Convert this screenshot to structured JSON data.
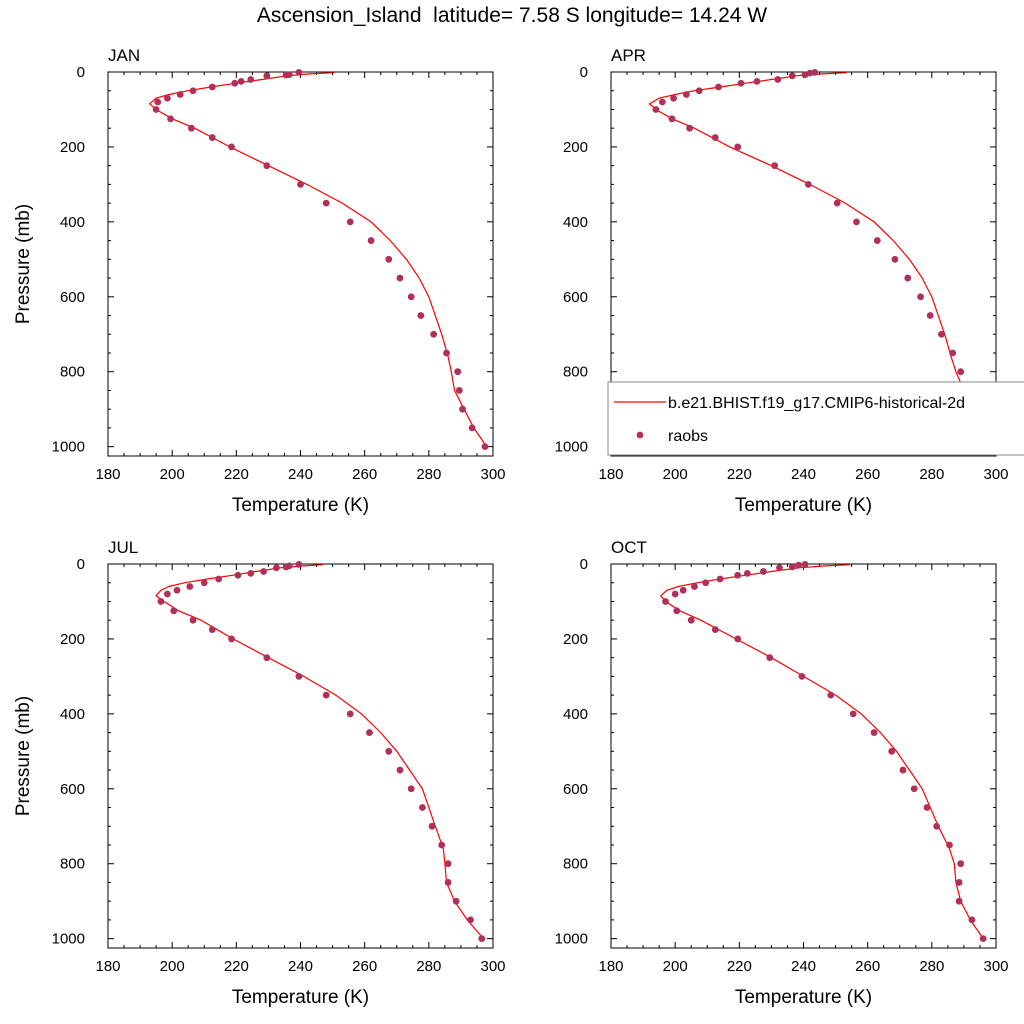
{
  "title": "Ascension_Island  latitude= 7.58 S longitude= 14.24 W",
  "colors": {
    "model_line": "#ff0000",
    "obs_marker": "#b0305a",
    "axis": "#000000"
  },
  "legend": {
    "model_label": "b.e21.BHIST.f19_g17.CMIP6-historical-2d",
    "obs_label": "raobs"
  },
  "chart_data": [
    {
      "type": "line",
      "panel_label": "JAN",
      "xlabel": "Temperature (K)",
      "ylabel": "Pressure (mb)",
      "xlim": [
        180,
        300
      ],
      "ylim": [
        0,
        1025
      ],
      "y_inverted": true,
      "xticks": [
        180,
        200,
        220,
        240,
        260,
        280,
        300
      ],
      "yticks": [
        0,
        200,
        400,
        600,
        800,
        1000
      ],
      "series": [
        {
          "name": "b.e21.BHIST.f19_g17.CMIP6-historical-2d",
          "kind": "line",
          "x": [
            250.5,
            243,
            236,
            228,
            220,
            212,
            205,
            199,
            195,
            193,
            195,
            200,
            207,
            218,
            230,
            242,
            253,
            262,
            268,
            273,
            277,
            280,
            284,
            286,
            287,
            288,
            291,
            294,
            298
          ],
          "y": [
            2,
            5,
            10,
            20,
            30,
            40,
            50,
            60,
            70,
            85,
            100,
            125,
            150,
            200,
            250,
            300,
            350,
            400,
            450,
            500,
            550,
            600,
            700,
            760,
            800,
            850,
            900,
            950,
            1000
          ]
        },
        {
          "name": "raobs",
          "kind": "scatter",
          "x": [
            239.5,
            236.5,
            235.5,
            229.5,
            224.5,
            221.5,
            219.5,
            212.5,
            206.5,
            202.5,
            198.5,
            195.5,
            195,
            199.5,
            206,
            212.5,
            218.5,
            229.5,
            240,
            248,
            255.5,
            262,
            267.5,
            271,
            274.5,
            277.5,
            281.5,
            285.5,
            289,
            289.5,
            290.5,
            293.5,
            297.5
          ],
          "y": [
            1,
            7,
            8,
            10,
            20,
            25,
            30,
            40,
            50,
            60,
            70,
            80,
            100,
            125,
            150,
            175,
            200,
            250,
            300,
            350,
            400,
            450,
            500,
            550,
            600,
            650,
            700,
            750,
            800,
            850,
            900,
            950,
            1000
          ]
        }
      ]
    },
    {
      "type": "line",
      "panel_label": "APR",
      "xlabel": "Temperature (K)",
      "ylabel": "",
      "xlim": [
        180,
        300
      ],
      "ylim": [
        0,
        1025
      ],
      "y_inverted": true,
      "xticks": [
        180,
        200,
        220,
        240,
        260,
        280,
        300
      ],
      "yticks": [
        0,
        200,
        400,
        600,
        800,
        1000
      ],
      "series": [
        {
          "name": "b.e21.BHIST.f19_g17.CMIP6-historical-2d",
          "kind": "line",
          "x": [
            253.5,
            246,
            238,
            230,
            222,
            214,
            206,
            200,
            195,
            192,
            194,
            199,
            206,
            217,
            230,
            242,
            253,
            262,
            268,
            273,
            277,
            280,
            284,
            286,
            287.5,
            290,
            293,
            296,
            300
          ],
          "y": [
            2,
            5,
            10,
            20,
            30,
            40,
            50,
            60,
            70,
            85,
            100,
            125,
            150,
            200,
            250,
            300,
            350,
            400,
            450,
            500,
            550,
            600,
            700,
            760,
            800,
            850,
            900,
            950,
            1000
          ]
        },
        {
          "name": "raobs",
          "kind": "scatter",
          "x": [
            243.5,
            242,
            240.5,
            236.5,
            232,
            225.5,
            220.5,
            213.5,
            207.5,
            203.5,
            199.5,
            196,
            194,
            199,
            204.5,
            212.5,
            219.5,
            231,
            241.5,
            250.5,
            256.5,
            263,
            268.5,
            272.5,
            276.5,
            279.5,
            283,
            286.5,
            289,
            290,
            292.5,
            297,
            300
          ],
          "y": [
            1,
            3,
            7,
            10,
            20,
            25,
            30,
            40,
            50,
            60,
            70,
            80,
            100,
            125,
            150,
            175,
            200,
            250,
            300,
            350,
            400,
            450,
            500,
            550,
            600,
            650,
            700,
            750,
            800,
            850,
            900,
            950,
            1000
          ]
        }
      ]
    },
    {
      "type": "line",
      "panel_label": "JUL",
      "xlabel": "Temperature (K)",
      "ylabel": "Pressure (mb)",
      "xlim": [
        180,
        300
      ],
      "ylim": [
        0,
        1025
      ],
      "y_inverted": true,
      "xticks": [
        180,
        200,
        220,
        240,
        260,
        280,
        300
      ],
      "yticks": [
        0,
        200,
        400,
        600,
        800,
        1000
      ],
      "series": [
        {
          "name": "b.e21.BHIST.f19_g17.CMIP6-historical-2d",
          "kind": "line",
          "x": [
            247,
            241,
            234,
            226,
            219,
            211,
            204,
            199,
            196.5,
            195,
            197.5,
            202,
            209,
            219,
            230,
            241,
            251,
            259,
            265,
            270,
            274,
            278,
            282,
            284.5,
            285,
            285.5,
            288,
            292,
            297
          ],
          "y": [
            2,
            5,
            10,
            20,
            30,
            40,
            50,
            60,
            70,
            85,
            100,
            125,
            150,
            200,
            250,
            300,
            350,
            400,
            450,
            500,
            550,
            600,
            700,
            760,
            800,
            850,
            900,
            950,
            1000
          ]
        },
        {
          "name": "raobs",
          "kind": "scatter",
          "x": [
            239.5,
            236.5,
            235.5,
            232.5,
            228.5,
            224.5,
            220.5,
            214.5,
            210,
            205.5,
            201.5,
            198.5,
            196.5,
            200.5,
            206.5,
            212.5,
            218.5,
            229.5,
            239.5,
            248,
            255.5,
            261.5,
            267.5,
            271,
            274.5,
            278,
            281,
            284,
            286,
            286,
            288.5,
            293,
            296.5
          ],
          "y": [
            1,
            5,
            8,
            10,
            20,
            25,
            30,
            40,
            50,
            60,
            70,
            80,
            100,
            125,
            150,
            175,
            200,
            250,
            300,
            350,
            400,
            450,
            500,
            550,
            600,
            650,
            700,
            750,
            800,
            850,
            900,
            950,
            1000
          ]
        }
      ]
    },
    {
      "type": "line",
      "panel_label": "OCT",
      "xlabel": "Temperature (K)",
      "ylabel": "",
      "xlim": [
        180,
        300
      ],
      "ylim": [
        0,
        1025
      ],
      "y_inverted": true,
      "xticks": [
        180,
        200,
        220,
        240,
        260,
        280,
        300
      ],
      "yticks": [
        0,
        200,
        400,
        600,
        800,
        1000
      ],
      "series": [
        {
          "name": "b.e21.BHIST.f19_g17.CMIP6-historical-2d",
          "kind": "line",
          "x": [
            254.5,
            247,
            239,
            230,
            222,
            214,
            207,
            201,
            197.5,
            195.5,
            197,
            201.5,
            208,
            219,
            230,
            240,
            250,
            258,
            264,
            269,
            273,
            277,
            282,
            285.5,
            287,
            287.5,
            289,
            292,
            296
          ],
          "y": [
            2,
            5,
            10,
            20,
            30,
            40,
            50,
            60,
            70,
            85,
            100,
            125,
            150,
            200,
            250,
            300,
            350,
            400,
            450,
            500,
            550,
            600,
            700,
            760,
            800,
            850,
            900,
            950,
            1000
          ]
        },
        {
          "name": "raobs",
          "kind": "scatter",
          "x": [
            240.5,
            238.5,
            236.5,
            232.5,
            227.5,
            222.5,
            219.5,
            214,
            209.5,
            206,
            202.5,
            200,
            197,
            200.5,
            205,
            212.5,
            219.5,
            229.5,
            239.5,
            248.5,
            255.5,
            262,
            267.5,
            271,
            274.5,
            278.5,
            281.5,
            285.5,
            289,
            288.5,
            288.5,
            292.5,
            296
          ],
          "y": [
            1,
            3,
            8,
            10,
            20,
            25,
            30,
            40,
            50,
            60,
            70,
            80,
            100,
            125,
            150,
            175,
            200,
            250,
            300,
            350,
            400,
            450,
            500,
            550,
            600,
            650,
            700,
            750,
            800,
            850,
            900,
            950,
            1000
          ]
        }
      ]
    }
  ]
}
